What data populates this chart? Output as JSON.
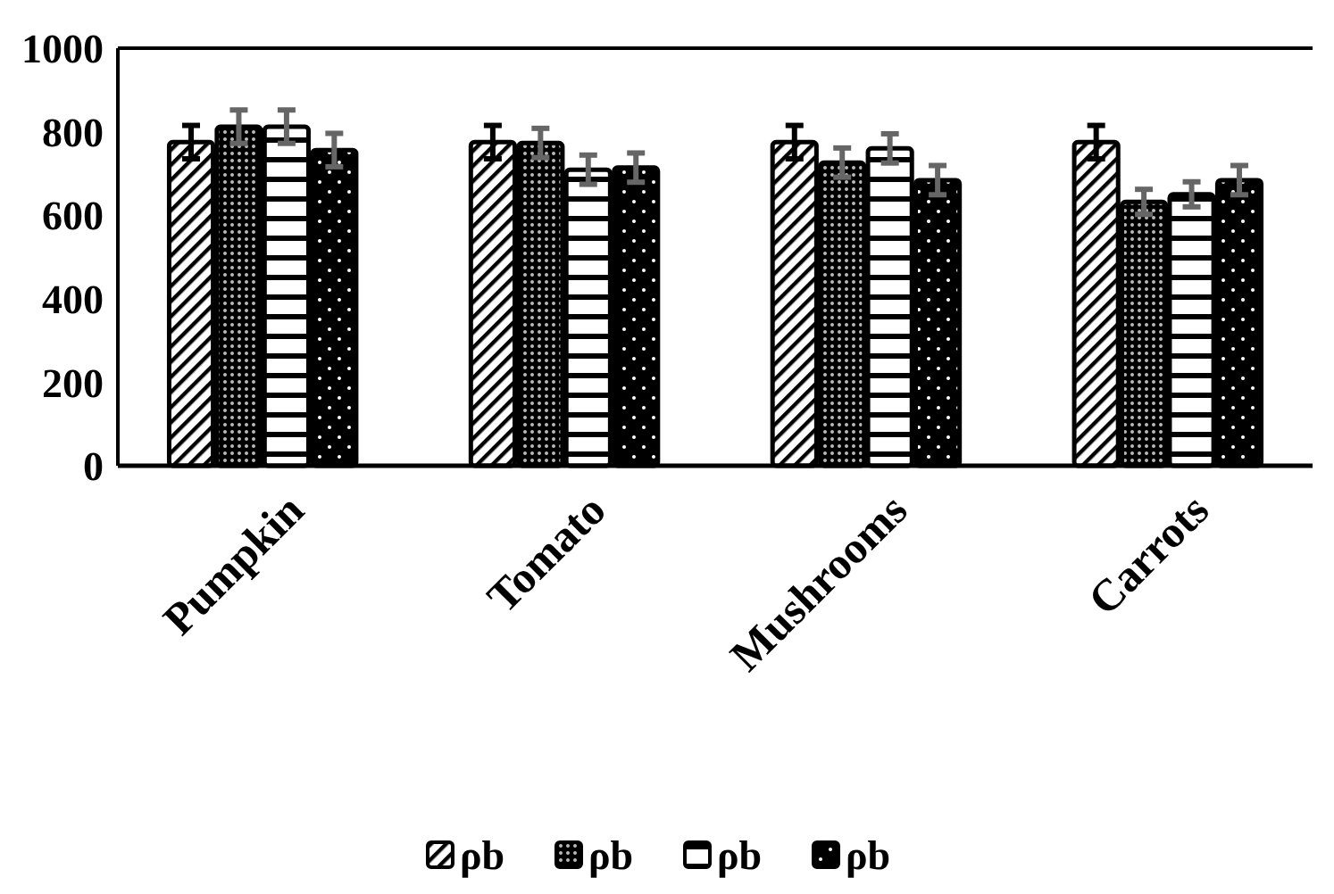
{
  "chart_data": {
    "type": "bar",
    "categories": [
      "Pumpkin",
      "Tomato",
      "Mushrooms",
      "Carrots"
    ],
    "series": [
      {
        "name": "ρb",
        "color": "#000000",
        "values": [
          775,
          775,
          775,
          775
        ],
        "errors": [
          40,
          40,
          40,
          40
        ]
      },
      {
        "name": "ρb",
        "color": "#000000",
        "values": [
          812,
          773,
          726,
          632
        ],
        "errors": [
          40,
          35,
          35,
          30
        ]
      },
      {
        "name": "ρb",
        "color": "#000000",
        "values": [
          812,
          709,
          760,
          650
        ],
        "errors": [
          40,
          35,
          35,
          30
        ]
      },
      {
        "name": "ρb",
        "color": "#000000",
        "values": [
          756,
          714,
          684,
          684
        ],
        "errors": [
          40,
          35,
          35,
          35
        ]
      }
    ],
    "ylim": [
      0,
      1000
    ],
    "yticks": [
      0,
      200,
      400,
      600,
      800,
      1000
    ],
    "grid": false,
    "legend": "bottom"
  }
}
